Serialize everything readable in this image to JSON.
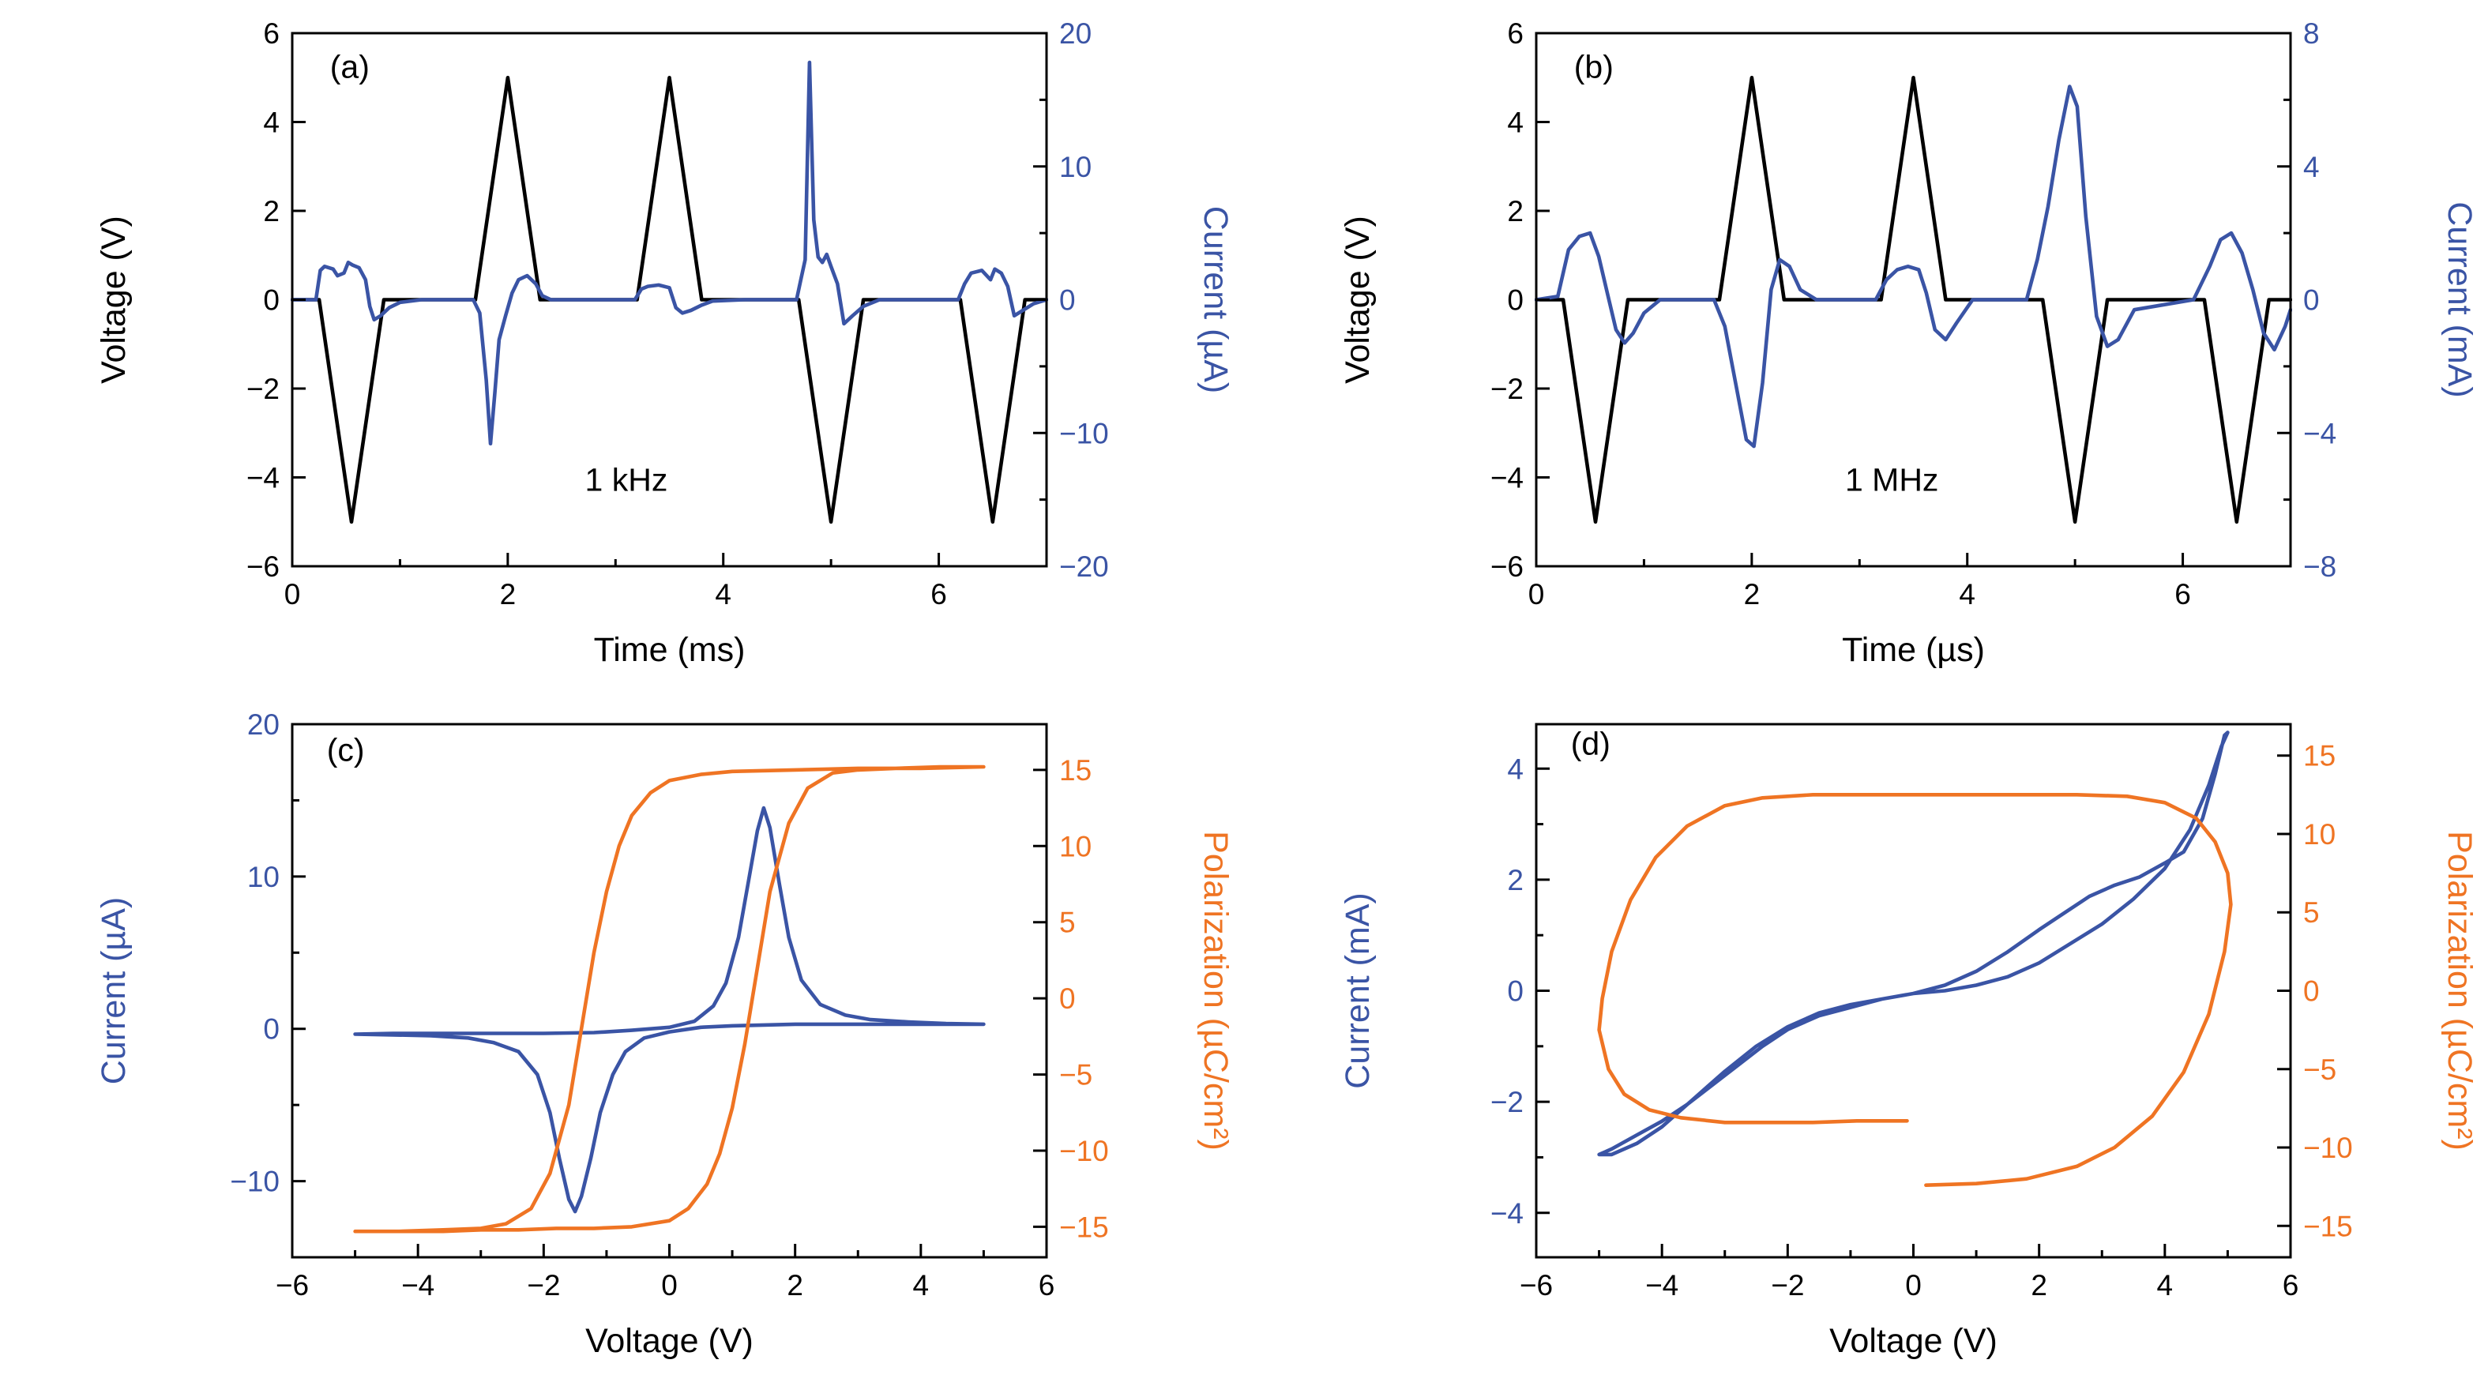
{
  "figure": {
    "background": "#ffffff",
    "colors": {
      "voltage": "#000000",
      "current": "#3a54a5",
      "polarization": "#ef7423",
      "frame": "#000000"
    }
  },
  "chart_data": [
    {
      "id": "a",
      "type": "line",
      "panel_label": {
        "text": "(a)",
        "x": 0.35,
        "y": 5.0
      },
      "annotation": {
        "text": "1 kHz",
        "x": 3.1,
        "y": -4.3
      },
      "x_axis": {
        "label": "Time (ms)",
        "min": 0,
        "max": 7,
        "major_ticks": [
          0,
          2,
          4,
          6
        ],
        "minor_ticks": [
          1,
          3,
          5,
          7
        ]
      },
      "left_axis": {
        "label": "Voltage (V)",
        "min": -6,
        "max": 6,
        "major_ticks": [
          -6,
          -4,
          -2,
          0,
          2,
          4,
          6
        ],
        "minor_ticks": [],
        "color": "#000000"
      },
      "right_axis": {
        "label": "Current (µA)",
        "min": -20,
        "max": 20,
        "major_ticks": [
          -20,
          -10,
          0,
          10,
          20
        ],
        "minor_ticks": [
          -15,
          -5,
          5,
          15
        ],
        "color": "#3a54a5"
      },
      "series": [
        {
          "name": "voltage",
          "axis": "left",
          "color": "#000000",
          "x": [
            0,
            0.25,
            0.55,
            0.85,
            1.7,
            2.0,
            2.3,
            3.2,
            3.5,
            3.8,
            4.7,
            5.0,
            5.3,
            6.2,
            6.5,
            6.8,
            7.0
          ],
          "y": [
            0,
            0,
            -5,
            0,
            0,
            5,
            0,
            0,
            5,
            0,
            0,
            -5,
            0,
            0,
            -5,
            0,
            0
          ]
        },
        {
          "name": "current",
          "axis": "right",
          "color": "#3a54a5",
          "x": [
            0.0,
            0.22,
            0.26,
            0.3,
            0.38,
            0.42,
            0.48,
            0.52,
            0.56,
            0.62,
            0.68,
            0.72,
            0.76,
            0.82,
            0.9,
            1.0,
            1.2,
            1.68,
            1.74,
            1.8,
            1.84,
            1.88,
            1.92,
            1.98,
            2.04,
            2.1,
            2.18,
            2.26,
            2.32,
            2.4,
            2.6,
            3.18,
            3.24,
            3.3,
            3.4,
            3.5,
            3.56,
            3.62,
            3.7,
            3.8,
            3.9,
            4.2,
            4.68,
            4.72,
            4.76,
            4.8,
            4.84,
            4.88,
            4.92,
            4.96,
            5.0,
            5.06,
            5.12,
            5.2,
            5.3,
            5.45,
            6.18,
            6.24,
            6.3,
            6.4,
            6.48,
            6.52,
            6.58,
            6.64,
            6.7,
            6.78,
            6.88,
            7.0
          ],
          "y": [
            0,
            0,
            2.2,
            2.5,
            2.3,
            1.8,
            2.0,
            2.8,
            2.6,
            2.4,
            1.5,
            -0.5,
            -1.5,
            -1.2,
            -0.6,
            -0.2,
            0,
            0,
            -1.0,
            -6.0,
            -10.8,
            -7.0,
            -3.0,
            -1.2,
            0.5,
            1.5,
            1.8,
            1.2,
            0.3,
            0,
            0,
            0,
            0.8,
            1.0,
            1.1,
            0.9,
            -0.6,
            -1.0,
            -0.8,
            -0.4,
            -0.1,
            0,
            0,
            1.5,
            3.0,
            17.8,
            6.0,
            3.2,
            2.8,
            3.4,
            2.5,
            1.2,
            -1.8,
            -1.2,
            -0.5,
            0,
            0,
            1.2,
            2.0,
            2.2,
            1.5,
            2.3,
            2.0,
            1.0,
            -1.2,
            -0.8,
            -0.3,
            0
          ]
        }
      ]
    },
    {
      "id": "b",
      "type": "line",
      "panel_label": {
        "text": "(b)",
        "x": 0.35,
        "y": 5.0
      },
      "annotation": {
        "text": "1 MHz",
        "x": 3.3,
        "y": -4.3
      },
      "x_axis": {
        "label": "Time (µs)",
        "min": 0,
        "max": 7,
        "major_ticks": [
          0,
          2,
          4,
          6
        ],
        "minor_ticks": [
          1,
          3,
          5,
          7
        ]
      },
      "left_axis": {
        "label": "Voltage (V)",
        "min": -6,
        "max": 6,
        "major_ticks": [
          -6,
          -4,
          -2,
          0,
          2,
          4,
          6
        ],
        "minor_ticks": [],
        "color": "#000000"
      },
      "right_axis": {
        "label": "Current (mA)",
        "min": -8,
        "max": 8,
        "major_ticks": [
          -8,
          -4,
          0,
          4,
          8
        ],
        "minor_ticks": [
          -6,
          -2,
          2,
          6
        ],
        "color": "#3a54a5"
      },
      "series": [
        {
          "name": "voltage",
          "axis": "left",
          "color": "#000000",
          "x": [
            0,
            0.25,
            0.55,
            0.85,
            1.7,
            2.0,
            2.3,
            3.2,
            3.5,
            3.8,
            4.7,
            5.0,
            5.3,
            6.2,
            6.5,
            6.8,
            7.0
          ],
          "y": [
            0,
            0,
            -5,
            0,
            0,
            5,
            0,
            0,
            5,
            0,
            0,
            -5,
            0,
            0,
            -5,
            0,
            0
          ]
        },
        {
          "name": "current",
          "axis": "right",
          "color": "#3a54a5",
          "x": [
            0.0,
            0.2,
            0.3,
            0.4,
            0.5,
            0.58,
            0.66,
            0.74,
            0.82,
            0.9,
            1.0,
            1.15,
            1.65,
            1.75,
            1.85,
            1.95,
            2.02,
            2.1,
            2.18,
            2.26,
            2.35,
            2.45,
            2.6,
            3.15,
            3.25,
            3.35,
            3.45,
            3.55,
            3.62,
            3.7,
            3.8,
            3.9,
            4.05,
            4.55,
            4.65,
            4.75,
            4.85,
            4.95,
            5.02,
            5.1,
            5.2,
            5.3,
            5.4,
            5.55,
            6.1,
            6.25,
            6.35,
            6.45,
            6.55,
            6.65,
            6.75,
            6.85,
            6.95,
            7.0
          ],
          "y": [
            0,
            0.1,
            1.5,
            1.9,
            2.0,
            1.3,
            0.2,
            -0.9,
            -1.3,
            -1.0,
            -0.4,
            0,
            0,
            -0.8,
            -2.5,
            -4.2,
            -4.4,
            -2.5,
            0.3,
            1.2,
            1.0,
            0.3,
            0,
            0,
            0.6,
            0.9,
            1.0,
            0.9,
            0.2,
            -0.9,
            -1.2,
            -0.7,
            0,
            0,
            1.2,
            2.8,
            4.8,
            6.4,
            5.8,
            2.5,
            -0.5,
            -1.4,
            -1.2,
            -0.3,
            0,
            1.0,
            1.8,
            2.0,
            1.4,
            0.3,
            -1.0,
            -1.5,
            -0.8,
            -0.3
          ]
        }
      ]
    },
    {
      "id": "c",
      "type": "line",
      "panel_label": {
        "text": "(c)",
        "x": -5.45,
        "y": 17.6
      },
      "annotation": null,
      "x_axis": {
        "label": "Voltage (V)",
        "min": -6,
        "max": 6,
        "major_ticks": [
          -6,
          -4,
          -2,
          0,
          2,
          4,
          6
        ],
        "minor_ticks": [
          -5,
          -3,
          -1,
          1,
          3,
          5
        ]
      },
      "left_axis": {
        "label": "Current (µA)",
        "min": -15,
        "max": 20,
        "major_ticks": [
          -10,
          0,
          10,
          20
        ],
        "minor_ticks": [
          -5,
          5,
          15
        ],
        "color": "#3a54a5"
      },
      "right_axis": {
        "label": "Polarization (µC/cm²)",
        "min": -17,
        "max": 18,
        "major_ticks": [
          -15,
          -10,
          -5,
          0,
          5,
          10,
          15
        ],
        "minor_ticks": [],
        "color": "#ef7423"
      },
      "series": [
        {
          "name": "current",
          "axis": "left",
          "color": "#3a54a5",
          "x": [
            5.0,
            4.0,
            3.0,
            2.0,
            1.5,
            1.0,
            0.5,
            0.0,
            -0.4,
            -0.7,
            -0.9,
            -1.1,
            -1.25,
            -1.4,
            -1.5,
            -1.6,
            -1.75,
            -1.9,
            -2.1,
            -2.4,
            -2.8,
            -3.2,
            -3.8,
            -4.4,
            -5.0,
            -4.4,
            -3.6,
            -2.8,
            -2.0,
            -1.2,
            -0.6,
            0.0,
            0.4,
            0.7,
            0.9,
            1.1,
            1.25,
            1.4,
            1.5,
            1.6,
            1.75,
            1.9,
            2.1,
            2.4,
            2.8,
            3.2,
            3.8,
            4.4,
            5.0
          ],
          "y": [
            0.3,
            0.3,
            0.3,
            0.3,
            0.25,
            0.2,
            0.1,
            -0.2,
            -0.6,
            -1.5,
            -3.0,
            -5.5,
            -8.5,
            -11.0,
            -12.0,
            -11.2,
            -8.5,
            -5.5,
            -3.0,
            -1.5,
            -0.9,
            -0.6,
            -0.45,
            -0.4,
            -0.35,
            -0.3,
            -0.3,
            -0.3,
            -0.3,
            -0.25,
            -0.1,
            0.1,
            0.5,
            1.5,
            3.0,
            6.0,
            9.5,
            13.0,
            14.5,
            13.2,
            9.5,
            6.0,
            3.2,
            1.6,
            0.9,
            0.6,
            0.45,
            0.35,
            0.3
          ]
        },
        {
          "name": "polarization",
          "axis": "right",
          "color": "#ef7423",
          "x": [
            5,
            4,
            3,
            2,
            1,
            0.5,
            0,
            -0.3,
            -0.6,
            -0.8,
            -1.0,
            -1.2,
            -1.4,
            -1.6,
            -1.9,
            -2.2,
            -2.6,
            -3.0,
            -3.6,
            -4.3,
            -5.0,
            -4.3,
            -3.6,
            -3.0,
            -2.4,
            -1.8,
            -1.2,
            -0.6,
            0,
            0.3,
            0.6,
            0.8,
            1.0,
            1.2,
            1.4,
            1.6,
            1.9,
            2.2,
            2.6,
            3.0,
            3.6,
            4.3,
            5.0
          ],
          "y": [
            15.2,
            15.1,
            15.1,
            15.0,
            14.9,
            14.7,
            14.3,
            13.5,
            12.0,
            10.0,
            7.0,
            3.0,
            -2.0,
            -7.0,
            -11.5,
            -13.8,
            -14.8,
            -15.1,
            -15.2,
            -15.3,
            -15.3,
            -15.3,
            -15.3,
            -15.2,
            -15.2,
            -15.1,
            -15.1,
            -15.0,
            -14.6,
            -13.8,
            -12.2,
            -10.2,
            -7.2,
            -3.0,
            2.0,
            7.0,
            11.5,
            13.8,
            14.8,
            15.0,
            15.1,
            15.2,
            15.2
          ]
        }
      ]
    },
    {
      "id": "d",
      "type": "line",
      "panel_label": {
        "text": "(d)",
        "x": -5.45,
        "y": 4.25
      },
      "annotation": null,
      "x_axis": {
        "label": "Voltage (V)",
        "min": -6,
        "max": 6,
        "major_ticks": [
          -6,
          -4,
          -2,
          0,
          2,
          4,
          6
        ],
        "minor_ticks": [
          -5,
          -3,
          -1,
          1,
          3,
          5
        ]
      },
      "left_axis": {
        "label": "Current (mA)",
        "min": -4.8,
        "max": 4.8,
        "major_ticks": [
          -4,
          -2,
          0,
          2,
          4
        ],
        "minor_ticks": [
          -3,
          -1,
          1,
          3
        ],
        "color": "#3a54a5"
      },
      "right_axis": {
        "label": "Polarization (µC/cm²)",
        "min": -17,
        "max": 17,
        "major_ticks": [
          -15,
          -10,
          -5,
          0,
          5,
          10,
          15
        ],
        "minor_ticks": [],
        "color": "#ef7423"
      },
      "series": [
        {
          "name": "current",
          "axis": "left",
          "color": "#3a54a5",
          "x": [
            0.0,
            0.5,
            1.0,
            1.5,
            2.0,
            2.5,
            3.0,
            3.5,
            4.0,
            4.4,
            4.7,
            4.9,
            5.0,
            4.95,
            4.8,
            4.6,
            4.3,
            4.0,
            3.6,
            3.2,
            2.8,
            2.4,
            2.0,
            1.5,
            1.0,
            0.5,
            0.0,
            -0.5,
            -1.0,
            -1.5,
            -2.0,
            -2.5,
            -3.0,
            -3.5,
            -4.0,
            -4.4,
            -4.8,
            -5.0,
            -4.8,
            -4.4,
            -4.0,
            -3.6,
            -3.2,
            -2.8,
            -2.4,
            -2.0,
            -1.5,
            -1.0,
            -0.5,
            0.0
          ],
          "y": [
            -0.05,
            0.0,
            0.1,
            0.25,
            0.5,
            0.85,
            1.2,
            1.65,
            2.2,
            2.9,
            3.7,
            4.4,
            4.65,
            4.6,
            3.9,
            3.1,
            2.5,
            2.3,
            2.05,
            1.9,
            1.7,
            1.4,
            1.1,
            0.7,
            0.35,
            0.1,
            -0.05,
            -0.15,
            -0.25,
            -0.4,
            -0.65,
            -1.0,
            -1.45,
            -1.95,
            -2.45,
            -2.75,
            -2.95,
            -2.95,
            -2.85,
            -2.6,
            -2.35,
            -2.05,
            -1.7,
            -1.35,
            -1.0,
            -0.7,
            -0.45,
            -0.3,
            -0.15,
            -0.05
          ]
        },
        {
          "name": "polarization",
          "axis": "right",
          "color": "#ef7423",
          "x": [
            0.2,
            1.0,
            1.8,
            2.6,
            3.2,
            3.8,
            4.3,
            4.7,
            4.95,
            5.05,
            5.0,
            4.8,
            4.5,
            4.0,
            3.4,
            2.6,
            1.6,
            0.6,
            -0.6,
            -1.6,
            -2.4,
            -3.0,
            -3.6,
            -4.1,
            -4.5,
            -4.8,
            -4.95,
            -5.0,
            -4.85,
            -4.6,
            -4.2,
            -3.7,
            -3.0,
            -2.3,
            -1.6,
            -0.9,
            -0.3,
            -0.1
          ],
          "y": [
            -12.4,
            -12.3,
            -12.0,
            -11.2,
            -10.0,
            -8.0,
            -5.2,
            -1.5,
            2.5,
            5.5,
            7.5,
            9.5,
            11.0,
            12.0,
            12.4,
            12.5,
            12.5,
            12.5,
            12.5,
            12.5,
            12.3,
            11.8,
            10.5,
            8.5,
            5.8,
            2.5,
            -0.5,
            -2.5,
            -5.0,
            -6.6,
            -7.6,
            -8.1,
            -8.4,
            -8.4,
            -8.4,
            -8.3,
            -8.3,
            -8.3
          ]
        }
      ]
    }
  ]
}
